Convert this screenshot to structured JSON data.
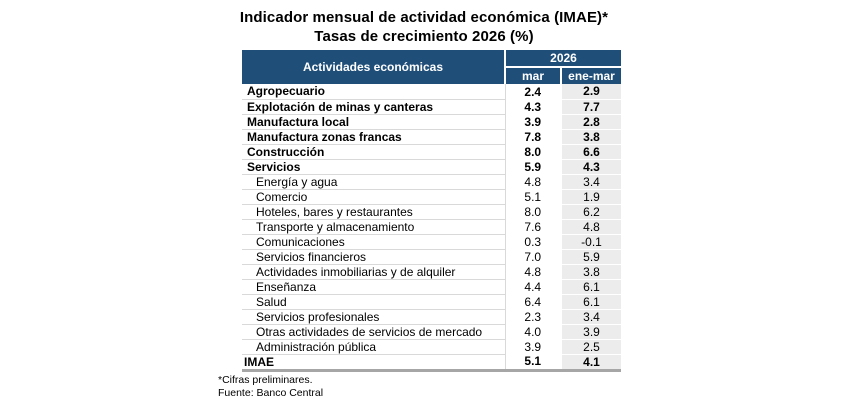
{
  "title": "Indicador mensual de actividad económica (IMAE)*",
  "subtitle": "Tasas de crecimiento 2026 (%)",
  "table": {
    "col1_header": "Actividades económicas",
    "year_header": "2026",
    "col_mar": "mar",
    "col_enemar": "ene-mar",
    "rows": [
      {
        "label": "Agropecuario",
        "mar": "2.4",
        "ene_mar": "2.9",
        "style": "section"
      },
      {
        "label": "Explotación de minas y canteras",
        "mar": "4.3",
        "ene_mar": "7.7",
        "style": "section"
      },
      {
        "label": "Manufactura local",
        "mar": "3.9",
        "ene_mar": "2.8",
        "style": "section"
      },
      {
        "label": "Manufactura zonas francas",
        "mar": "7.8",
        "ene_mar": "3.8",
        "style": "section"
      },
      {
        "label": "Construcción",
        "mar": "8.0",
        "ene_mar": "6.6",
        "style": "section"
      },
      {
        "label": "Servicios",
        "mar": "5.9",
        "ene_mar": "4.3",
        "style": "section"
      },
      {
        "label": "Energía y agua",
        "mar": "4.8",
        "ene_mar": "3.4",
        "style": "sub"
      },
      {
        "label": "Comercio",
        "mar": "5.1",
        "ene_mar": "1.9",
        "style": "sub"
      },
      {
        "label": "Hoteles, bares y restaurantes",
        "mar": "8.0",
        "ene_mar": "6.2",
        "style": "sub"
      },
      {
        "label": "Transporte y almacenamiento",
        "mar": "7.6",
        "ene_mar": "4.8",
        "style": "sub"
      },
      {
        "label": "Comunicaciones",
        "mar": "0.3",
        "ene_mar": "-0.1",
        "style": "sub"
      },
      {
        "label": "Servicios financieros",
        "mar": "7.0",
        "ene_mar": "5.9",
        "style": "sub"
      },
      {
        "label": "Actividades inmobiliarias y de alquiler",
        "mar": "4.8",
        "ene_mar": "3.8",
        "style": "sub"
      },
      {
        "label": "Enseñanza",
        "mar": "4.4",
        "ene_mar": "6.1",
        "style": "sub"
      },
      {
        "label": "Salud",
        "mar": "6.4",
        "ene_mar": "6.1",
        "style": "sub"
      },
      {
        "label": "Servicios profesionales",
        "mar": "2.3",
        "ene_mar": "3.4",
        "style": "sub"
      },
      {
        "label": "Otras actividades de servicios de mercado",
        "mar": "4.0",
        "ene_mar": "3.9",
        "style": "sub"
      },
      {
        "label": "Administración pública",
        "mar": "3.9",
        "ene_mar": "2.5",
        "style": "sub"
      },
      {
        "label": "IMAE",
        "mar": "5.1",
        "ene_mar": "4.1",
        "style": "total"
      }
    ]
  },
  "footnotes": [
    "*Cifras preliminares.",
    "Fuente: Banco Central"
  ],
  "colors": {
    "header_bg": "#1f4e79",
    "header_text": "#ffffff",
    "stripe_column_bg": "#ececec",
    "row_separator": "#d9d9d9",
    "table_bottom_border": "#a6a6a6"
  },
  "chart_data": {
    "type": "table",
    "title": "Indicador mensual de actividad económica (IMAE)*",
    "subtitle": "Tasas de crecimiento 2026 (%)",
    "columns": [
      "Actividades económicas",
      "2026 mar",
      "2026 ene-mar"
    ],
    "categories": [
      "Agropecuario",
      "Explotación de minas y canteras",
      "Manufactura local",
      "Manufactura zonas francas",
      "Construcción",
      "Servicios",
      "Energía y agua",
      "Comercio",
      "Hoteles, bares y restaurantes",
      "Transporte y almacenamiento",
      "Comunicaciones",
      "Servicios financieros",
      "Actividades inmobiliarias y de alquiler",
      "Enseñanza",
      "Salud",
      "Servicios profesionales",
      "Otras actividades de servicios de mercado",
      "Administración pública",
      "IMAE"
    ],
    "series": [
      {
        "name": "mar",
        "values": [
          2.4,
          4.3,
          3.9,
          7.8,
          8.0,
          5.9,
          4.8,
          5.1,
          8.0,
          7.6,
          0.3,
          7.0,
          4.8,
          4.4,
          6.4,
          2.3,
          4.0,
          3.9,
          5.1
        ]
      },
      {
        "name": "ene-mar",
        "values": [
          2.9,
          7.7,
          2.8,
          3.8,
          6.6,
          4.3,
          3.4,
          1.9,
          6.2,
          4.8,
          -0.1,
          5.9,
          3.8,
          6.1,
          6.1,
          3.4,
          3.9,
          2.5,
          4.1
        ]
      }
    ],
    "notes": [
      "*Cifras preliminares.",
      "Fuente: Banco Central"
    ]
  }
}
